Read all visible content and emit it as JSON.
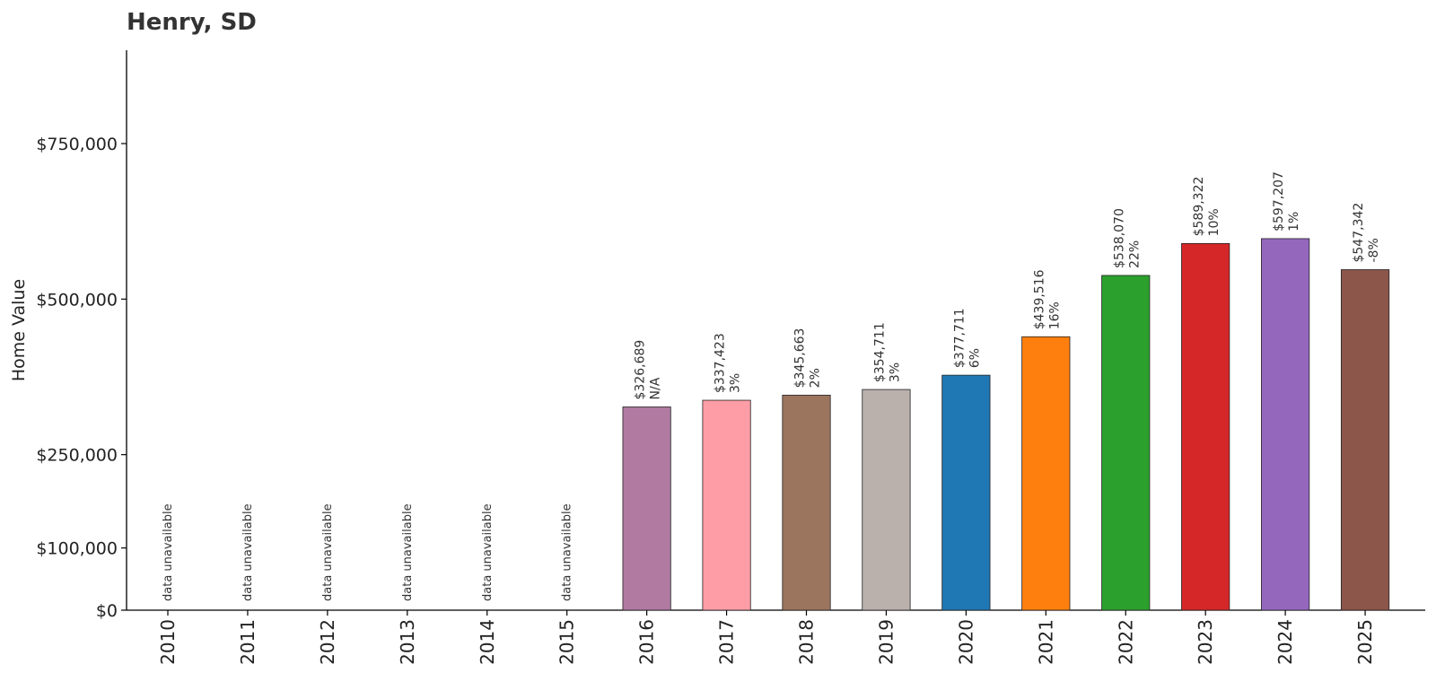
{
  "chart_data": {
    "type": "bar",
    "title": "Henry, SD",
    "xlabel": "",
    "ylabel": "Home Value",
    "ylim": [
      0,
      900000
    ],
    "yticks": [
      0,
      100000,
      250000,
      500000,
      750000
    ],
    "ytick_labels": [
      "$0",
      "$100,000",
      "$250,000",
      "$500,000",
      "$750,000"
    ],
    "grid": false,
    "categories": [
      "2010",
      "2011",
      "2012",
      "2013",
      "2014",
      "2015",
      "2016",
      "2017",
      "2018",
      "2019",
      "2020",
      "2021",
      "2022",
      "2023",
      "2024",
      "2025"
    ],
    "values": [
      null,
      null,
      null,
      null,
      null,
      null,
      326689,
      337423,
      345663,
      354711,
      377711,
      439516,
      538070,
      589322,
      597207,
      547342
    ],
    "value_labels": [
      "",
      "",
      "",
      "",
      "",
      "",
      "$326,689",
      "$337,423",
      "$345,663",
      "$354,711",
      "$377,711",
      "$439,516",
      "$538,070",
      "$589,322",
      "$597,207",
      "$547,342"
    ],
    "change_labels": [
      "",
      "",
      "",
      "",
      "",
      "",
      "N/A",
      "3%",
      "2%",
      "3%",
      "6%",
      "16%",
      "22%",
      "10%",
      "1%",
      "-8%"
    ],
    "missing_label": "data unavailable",
    "colors": [
      "#1f77b4",
      "#1f77b4",
      "#1f77b4",
      "#1f77b4",
      "#1f77b4",
      "#1f77b4",
      "#b07aa1",
      "#ff9da7",
      "#9c755f",
      "#bab0ac",
      "#1f77b4",
      "#ff7f0e",
      "#2ca02c",
      "#d62728",
      "#9467bd",
      "#8c564b"
    ]
  }
}
